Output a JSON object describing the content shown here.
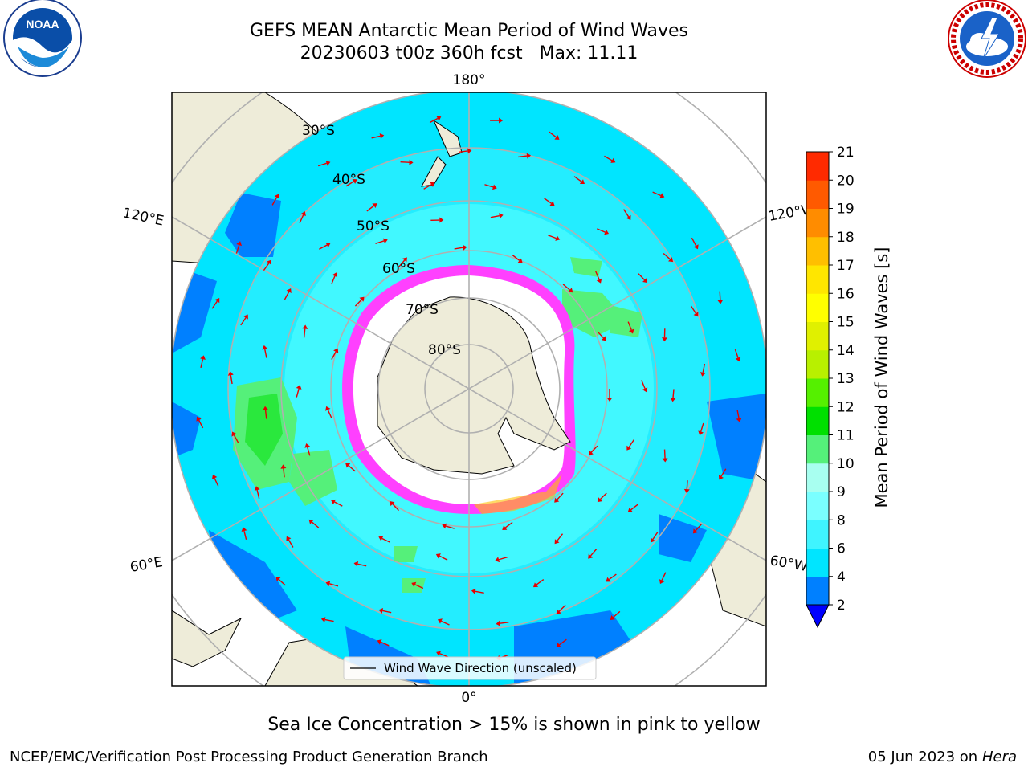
{
  "header": {
    "title_line1": "GEFS MEAN Antarctic Mean Period of Wind Waves",
    "title_line2": "20230603 t00z 360h fcst   Max: 11.11"
  },
  "logos": {
    "left": {
      "name": "noaa-logo",
      "text": "NOAA"
    },
    "right": {
      "name": "nws-logo"
    }
  },
  "map": {
    "projection": "south-polar-stereographic",
    "lon_labels": [
      {
        "text": "180°",
        "side": "top"
      },
      {
        "text": "0°",
        "side": "bottom"
      },
      {
        "text": "120°E",
        "side": "upper-left"
      },
      {
        "text": "120°W",
        "side": "upper-right"
      },
      {
        "text": "60°E",
        "side": "lower-left"
      },
      {
        "text": "60°W",
        "side": "lower-right"
      }
    ],
    "lat_labels": [
      "30°S",
      "40°S",
      "50°S",
      "60°S",
      "70°S",
      "80°S"
    ],
    "legend_label": "Wind Wave Direction (unscaled)",
    "colors": {
      "land": "#eeecd9",
      "ocean_low": "#0080ff",
      "ocean_mid": "#00e5ff",
      "ocean_high": "#55ffff",
      "waves_9_10": "#a0fff0",
      "waves_10_11": "#55f07a",
      "ice_edge": "#ff40ff",
      "ice_inner": "#ffffff",
      "arrow": "#e60000",
      "grid": "#b0b0b0"
    }
  },
  "colorbar": {
    "label": "Mean Period of Wind Waves [s]",
    "ticks": [
      "2",
      "4",
      "6",
      "8",
      "9",
      "10",
      "11",
      "12",
      "13",
      "14",
      "15",
      "16",
      "17",
      "18",
      "19",
      "20",
      "21"
    ],
    "colors": [
      "#0080ff",
      "#00e5ff",
      "#3ff4ff",
      "#7affff",
      "#a8fff0",
      "#55f07a",
      "#00e000",
      "#55f000",
      "#b8f000",
      "#e0f000",
      "#ffff00",
      "#ffe600",
      "#ffbf00",
      "#ff8c00",
      "#ff5a00",
      "#ff2a00"
    ],
    "extend_color": "#0000ff"
  },
  "footer": {
    "note": "Sea Ice Concentration > 15% is shown in pink to yellow",
    "left": "NCEP/EMC/Verification Post Processing Product Generation Branch",
    "right_date": "05 Jun 2023 on",
    "right_host": "Hera"
  }
}
